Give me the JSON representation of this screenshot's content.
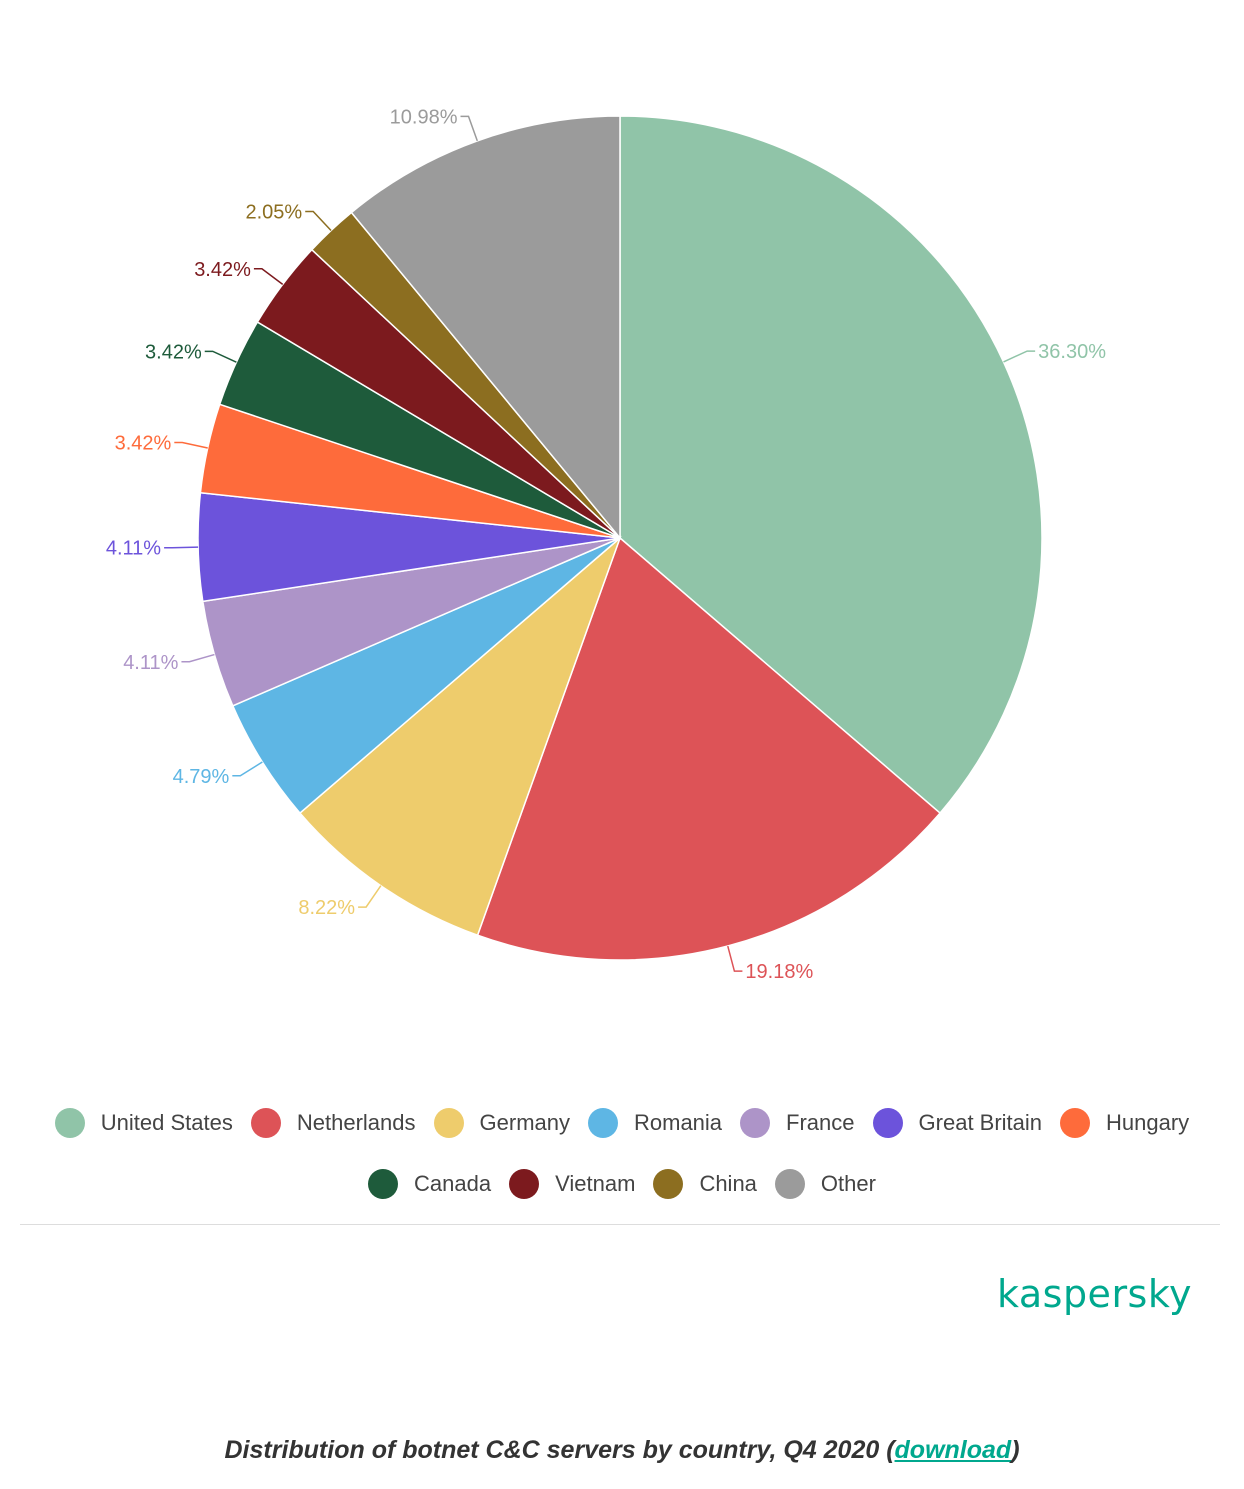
{
  "chart_data": {
    "type": "pie",
    "title": "Distribution of botnet C&C servers by country, Q4 2020",
    "slices": [
      {
        "name": "United States",
        "value": 36.3,
        "label": "36.30%",
        "color": "#90c4a8"
      },
      {
        "name": "Netherlands",
        "value": 19.18,
        "label": "19.18%",
        "color": "#dd5357"
      },
      {
        "name": "Germany",
        "value": 8.22,
        "label": "8.22%",
        "color": "#eecc6c"
      },
      {
        "name": "Romania",
        "value": 4.79,
        "label": "4.79%",
        "color": "#5eb6e4"
      },
      {
        "name": "France",
        "value": 4.11,
        "label": "4.11%",
        "color": "#ad94c8"
      },
      {
        "name": "Great Britain",
        "value": 4.11,
        "label": "4.11%",
        "color": "#6c53db"
      },
      {
        "name": "Hungary",
        "value": 3.42,
        "label": "3.42%",
        "color": "#fe6b3b"
      },
      {
        "name": "Canada",
        "value": 3.42,
        "label": "3.42%",
        "color": "#1e5b3b"
      },
      {
        "name": "Vietnam",
        "value": 3.42,
        "label": "3.42%",
        "color": "#7c1a1e"
      },
      {
        "name": "China",
        "value": 2.05,
        "label": "2.05%",
        "color": "#8c6e20"
      },
      {
        "name": "Other",
        "value": 10.98,
        "label": "10.98%",
        "color": "#9b9b9b"
      }
    ],
    "start_angle": "12 o'clock, clockwise",
    "legend_position": "bottom"
  },
  "legend": {
    "row1": [
      {
        "label": "United States",
        "color": "#90c4a8"
      },
      {
        "label": "Netherlands",
        "color": "#dd5357"
      },
      {
        "label": "Germany",
        "color": "#eecc6c"
      },
      {
        "label": "Romania",
        "color": "#5eb6e4"
      },
      {
        "label": "France",
        "color": "#ad94c8"
      },
      {
        "label": "Great Britain",
        "color": "#6c53db"
      },
      {
        "label": "Hungary",
        "color": "#fe6b3b"
      }
    ],
    "row2": [
      {
        "label": "Canada",
        "color": "#1e5b3b"
      },
      {
        "label": "Vietnam",
        "color": "#7c1a1e"
      },
      {
        "label": "China",
        "color": "#8c6e20"
      },
      {
        "label": "Other",
        "color": "#9b9b9b"
      }
    ]
  },
  "brand": {
    "logo_text": "kaspersky",
    "color": "#00a88e"
  },
  "caption": {
    "text": "Distribution of botnet C&C servers by country, Q4 2020 (",
    "link": "download",
    "close": ")"
  }
}
